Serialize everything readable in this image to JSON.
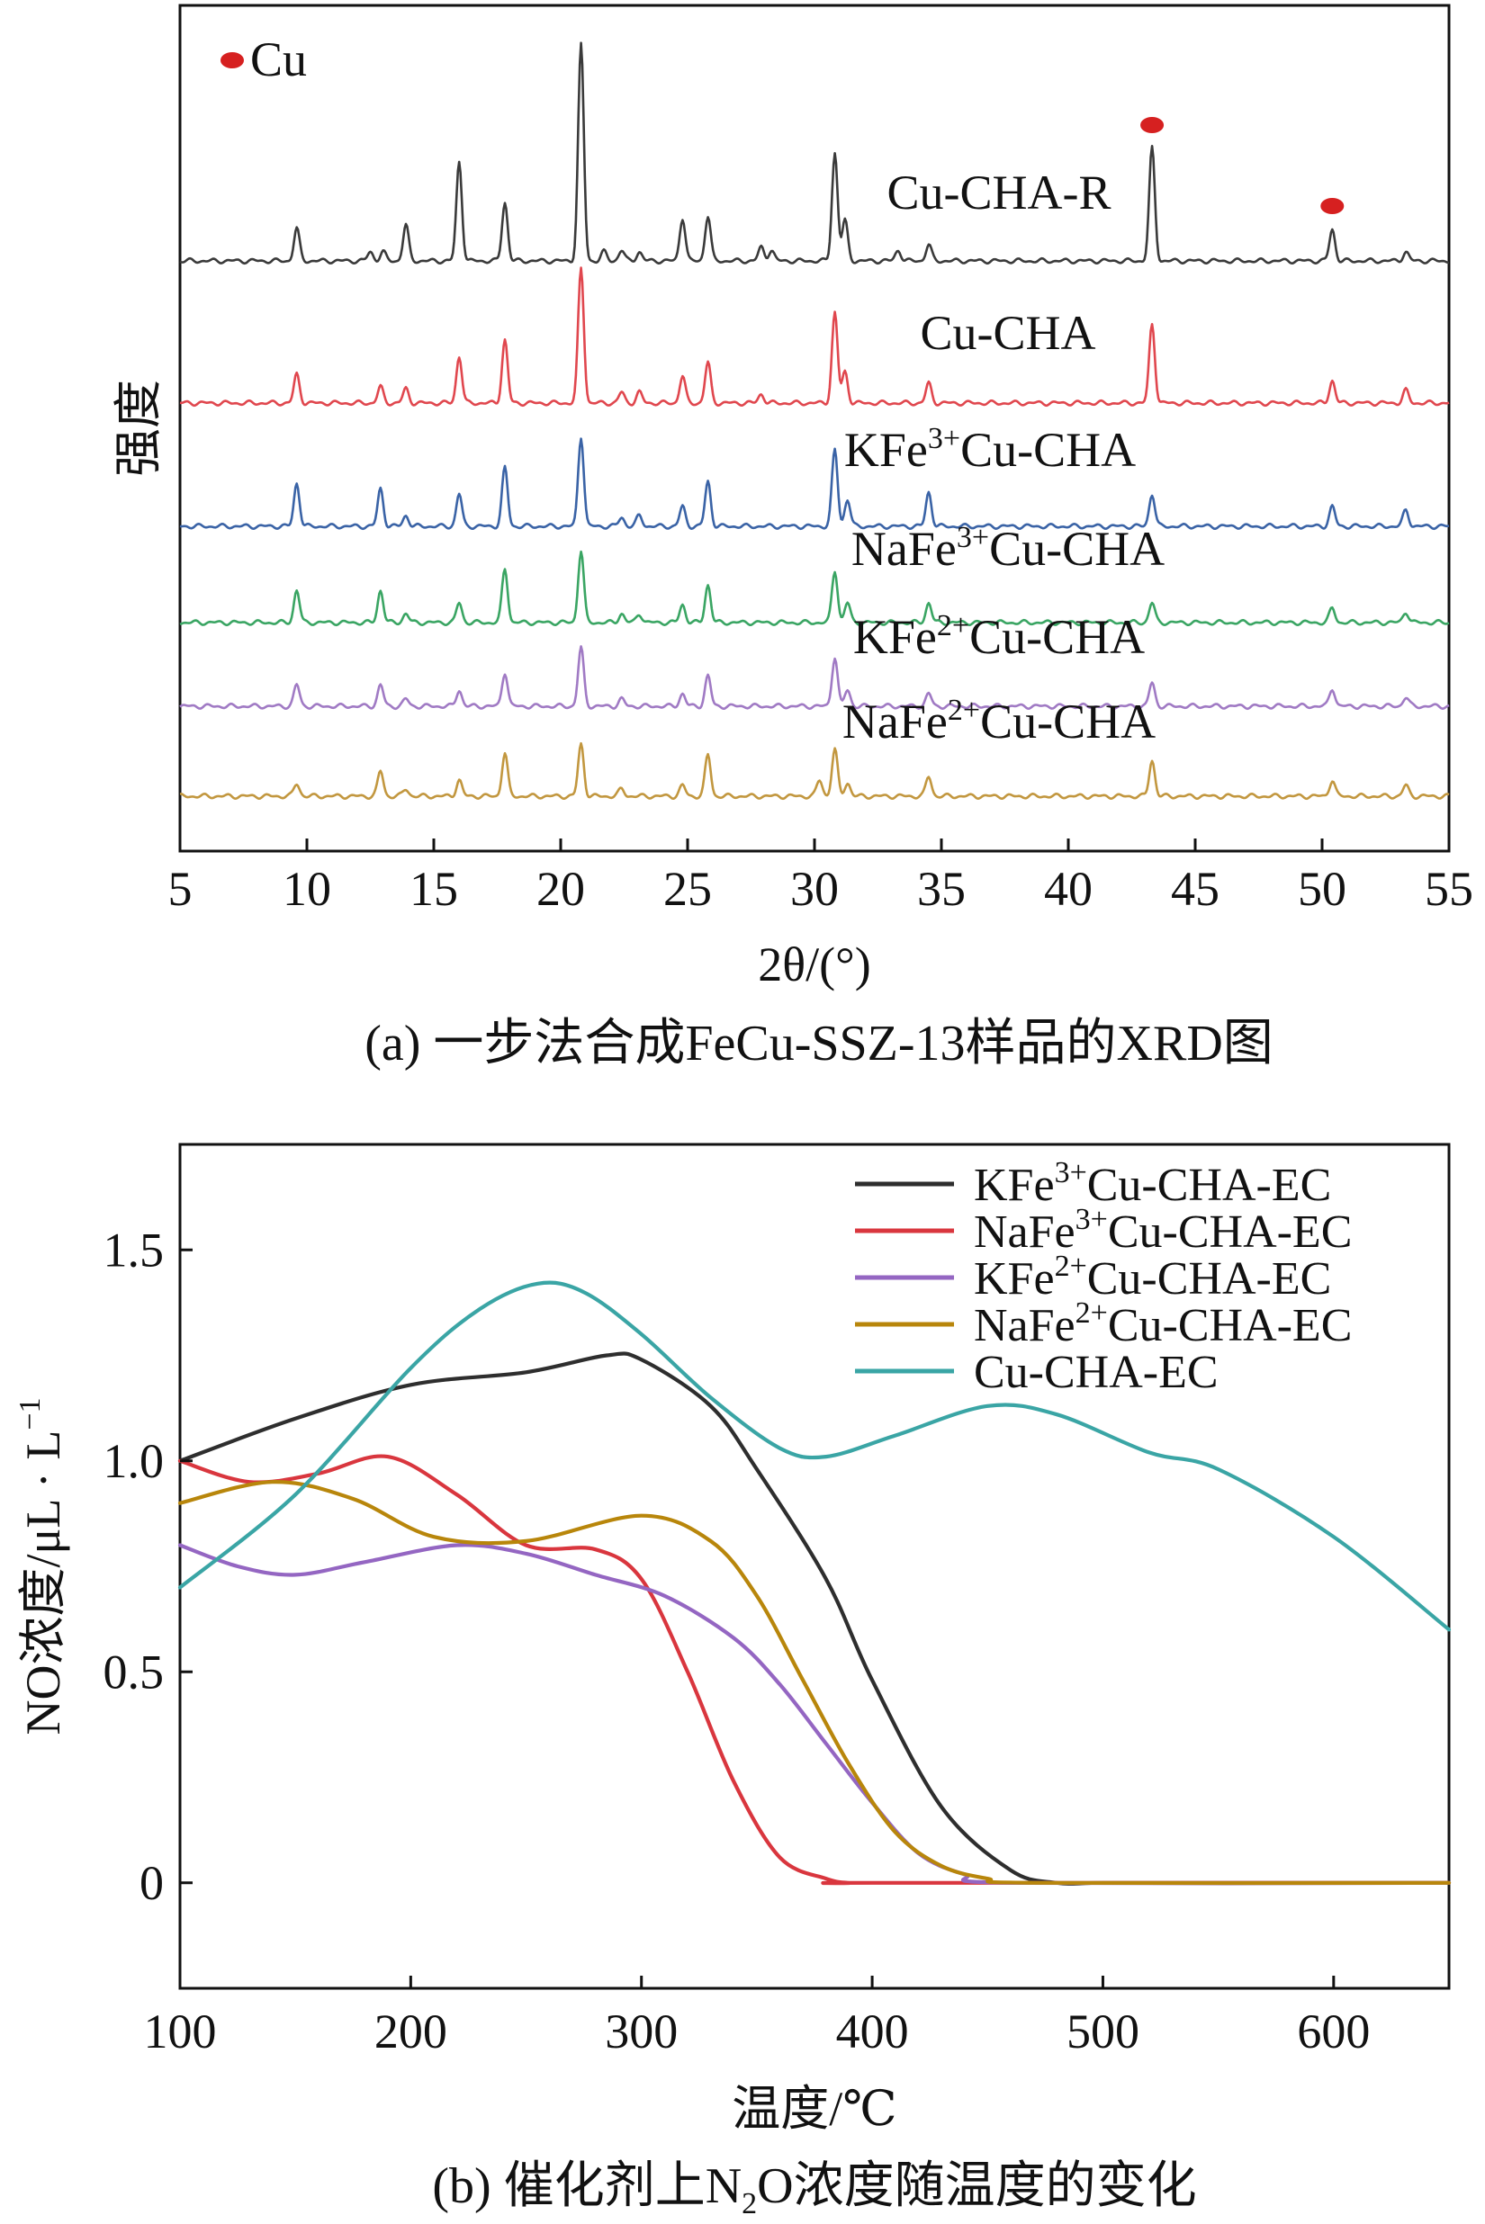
{
  "chart_data": [
    {
      "type": "line",
      "panel": "a",
      "caption": "(a) 一步法合成FeCu-SSZ-13样品的XRD图",
      "xlabel": "2θ/(°)",
      "ylabel": "强度",
      "xlim": [
        5,
        55
      ],
      "xticks": [
        5,
        10,
        15,
        20,
        25,
        30,
        35,
        40,
        45,
        50,
        55
      ],
      "legend": [
        {
          "label": "Cu",
          "color": "#d62020",
          "marker": "filled-ellipse"
        }
      ],
      "cu_markers_2theta": [
        43.3,
        50.4
      ],
      "series": [
        {
          "name": "Cu-CHA-R",
          "label_main": "Cu-CHA-R",
          "label_sup": "",
          "label_tail": "",
          "color": "#3a3a3a",
          "peaks": [
            [
              9.6,
              36
            ],
            [
              12.5,
              10
            ],
            [
              13.0,
              10
            ],
            [
              13.9,
              40
            ],
            [
              16.0,
              110
            ],
            [
              17.8,
              65
            ],
            [
              20.8,
              240
            ],
            [
              21.7,
              10
            ],
            [
              22.4,
              12
            ],
            [
              23.1,
              10
            ],
            [
              24.8,
              48
            ],
            [
              25.8,
              50
            ],
            [
              27.9,
              15
            ],
            [
              28.3,
              12
            ],
            [
              30.8,
              120
            ],
            [
              31.2,
              45
            ],
            [
              33.3,
              12
            ],
            [
              34.5,
              18
            ],
            [
              43.3,
              125
            ],
            [
              50.4,
              35
            ],
            [
              53.3,
              10
            ]
          ]
        },
        {
          "name": "Cu-CHA",
          "label_main": "Cu-CHA",
          "label_sup": "",
          "label_tail": "",
          "color": "#e0474e",
          "peaks": [
            [
              9.6,
              32
            ],
            [
              12.9,
              18
            ],
            [
              13.9,
              16
            ],
            [
              16.0,
              52
            ],
            [
              17.8,
              70
            ],
            [
              20.8,
              150
            ],
            [
              22.4,
              12
            ],
            [
              23.1,
              12
            ],
            [
              24.8,
              30
            ],
            [
              25.8,
              45
            ],
            [
              27.9,
              10
            ],
            [
              30.8,
              100
            ],
            [
              31.2,
              35
            ],
            [
              34.5,
              22
            ],
            [
              43.3,
              88
            ],
            [
              50.4,
              25
            ],
            [
              53.3,
              14
            ]
          ]
        },
        {
          "name": "KFe3+Cu-CHA",
          "label_main": "KFe",
          "label_sup": "3+",
          "label_tail": "Cu-CHA",
          "color": "#3a63a6",
          "peaks": [
            [
              9.6,
              48
            ],
            [
              12.9,
              42
            ],
            [
              13.9,
              12
            ],
            [
              16.0,
              36
            ],
            [
              17.8,
              65
            ],
            [
              20.8,
              100
            ],
            [
              22.4,
              10
            ],
            [
              23.1,
              12
            ],
            [
              24.8,
              22
            ],
            [
              25.8,
              50
            ],
            [
              30.8,
              85
            ],
            [
              31.3,
              30
            ],
            [
              34.5,
              38
            ],
            [
              43.3,
              36
            ],
            [
              50.4,
              22
            ],
            [
              53.3,
              18
            ]
          ]
        },
        {
          "name": "NaFe3+Cu-CHA",
          "label_main": "NaFe",
          "label_sup": "3+",
          "label_tail": "Cu-CHA",
          "color": "#3aa563",
          "peaks": [
            [
              9.6,
              36
            ],
            [
              12.9,
              36
            ],
            [
              13.9,
              10
            ],
            [
              16.0,
              22
            ],
            [
              17.8,
              60
            ],
            [
              20.8,
              80
            ],
            [
              22.4,
              10
            ],
            [
              23.1,
              10
            ],
            [
              24.8,
              20
            ],
            [
              25.8,
              42
            ],
            [
              30.8,
              58
            ],
            [
              31.3,
              22
            ],
            [
              34.5,
              22
            ],
            [
              43.3,
              22
            ],
            [
              50.4,
              16
            ],
            [
              53.3,
              12
            ]
          ]
        },
        {
          "name": "KFe2+Cu-CHA",
          "label_main": "KFe",
          "label_sup": "2+",
          "label_tail": "Cu-CHA",
          "color": "#a07ac4",
          "peaks": [
            [
              9.6,
              24
            ],
            [
              12.9,
              24
            ],
            [
              13.9,
              8
            ],
            [
              16.0,
              18
            ],
            [
              17.8,
              38
            ],
            [
              20.8,
              65
            ],
            [
              22.4,
              8
            ],
            [
              24.8,
              14
            ],
            [
              25.8,
              34
            ],
            [
              30.8,
              55
            ],
            [
              31.3,
              18
            ],
            [
              34.5,
              14
            ],
            [
              43.3,
              26
            ],
            [
              50.4,
              20
            ],
            [
              53.3,
              10
            ]
          ]
        },
        {
          "name": "NaFe2+Cu-CHA",
          "label_main": "NaFe",
          "label_sup": "2+",
          "label_tail": "Cu-CHA",
          "color": "#c2973f",
          "peaks": [
            [
              9.6,
              14
            ],
            [
              12.9,
              28
            ],
            [
              13.9,
              8
            ],
            [
              16.0,
              18
            ],
            [
              17.8,
              48
            ],
            [
              20.8,
              58
            ],
            [
              22.4,
              8
            ],
            [
              24.8,
              12
            ],
            [
              25.8,
              46
            ],
            [
              30.2,
              18
            ],
            [
              30.8,
              52
            ],
            [
              31.3,
              15
            ],
            [
              34.5,
              22
            ],
            [
              43.3,
              40
            ],
            [
              50.4,
              18
            ],
            [
              53.3,
              12
            ]
          ]
        }
      ]
    },
    {
      "type": "line",
      "panel": "b",
      "caption_pre": "(b) 催化剂上N",
      "caption_sub": "2",
      "caption_post": "O浓度随温度的变化",
      "xlabel": "温度/℃",
      "ylabel": "NO浓度/μL · L",
      "ylabel_sup": "−1",
      "xlim": [
        100,
        650
      ],
      "ylim": [
        -0.25,
        1.75
      ],
      "xticks": [
        100,
        200,
        300,
        400,
        500,
        600
      ],
      "yticks": [
        0,
        0.5,
        1.0,
        1.5
      ],
      "ytick_labels": [
        "0",
        "0.5",
        "1.0",
        "1.5"
      ],
      "legend_position": "top-right",
      "series": [
        {
          "name": "KFe3+Cu-CHA-EC",
          "label_main": "KFe",
          "label_sup": "3+",
          "label_tail": "Cu-CHA-EC",
          "color": "#2e2e2e",
          "x": [
            100,
            150,
            200,
            250,
            285,
            300,
            330,
            350,
            380,
            400,
            430,
            460,
            480,
            500,
            550,
            650
          ],
          "y": [
            1.0,
            1.1,
            1.18,
            1.21,
            1.25,
            1.24,
            1.13,
            0.98,
            0.72,
            0.48,
            0.18,
            0.03,
            0.0,
            0.0,
            0.0,
            0.0
          ]
        },
        {
          "name": "NaFe3+Cu-CHA-EC",
          "label_main": "NaFe",
          "label_sup": "3+",
          "label_tail": "Cu-CHA-EC",
          "color": "#d9363e",
          "x": [
            100,
            130,
            160,
            190,
            220,
            250,
            280,
            300,
            320,
            340,
            360,
            380,
            390,
            400,
            650
          ],
          "y": [
            1.0,
            0.95,
            0.97,
            1.01,
            0.92,
            0.8,
            0.79,
            0.72,
            0.5,
            0.24,
            0.06,
            0.01,
            0.0,
            0.0,
            0.0
          ]
        },
        {
          "name": "KFe2+Cu-CHA-EC",
          "label_main": "KFe",
          "label_sup": "2+",
          "label_tail": "Cu-CHA-EC",
          "color": "#9466c2",
          "x": [
            100,
            125,
            150,
            180,
            220,
            250,
            280,
            310,
            340,
            360,
            380,
            400,
            420,
            440,
            460,
            650
          ],
          "y": [
            0.8,
            0.75,
            0.73,
            0.76,
            0.8,
            0.78,
            0.73,
            0.68,
            0.58,
            0.47,
            0.33,
            0.19,
            0.07,
            0.02,
            0.0,
            0.0
          ]
        },
        {
          "name": "NaFe2+Cu-CHA-EC",
          "label_main": "NaFe",
          "label_sup": "2+",
          "label_tail": "Cu-CHA-EC",
          "color": "#b8860b",
          "x": [
            100,
            140,
            175,
            210,
            250,
            300,
            330,
            350,
            370,
            390,
            410,
            430,
            450,
            470,
            650
          ],
          "y": [
            0.9,
            0.95,
            0.91,
            0.82,
            0.81,
            0.87,
            0.81,
            0.68,
            0.48,
            0.28,
            0.12,
            0.04,
            0.01,
            0.0,
            0.0
          ]
        },
        {
          "name": "Cu-CHA-EC",
          "label_main": "Cu-CHA-EC",
          "label_sup": "",
          "label_tail": "",
          "color": "#3aa5a5",
          "x": [
            100,
            150,
            200,
            230,
            255,
            275,
            300,
            330,
            360,
            380,
            410,
            450,
            480,
            520,
            550,
            600,
            650
          ],
          "y": [
            0.7,
            0.92,
            1.22,
            1.36,
            1.42,
            1.4,
            1.3,
            1.15,
            1.03,
            1.01,
            1.06,
            1.13,
            1.11,
            1.02,
            0.98,
            0.82,
            0.6
          ]
        }
      ]
    }
  ]
}
